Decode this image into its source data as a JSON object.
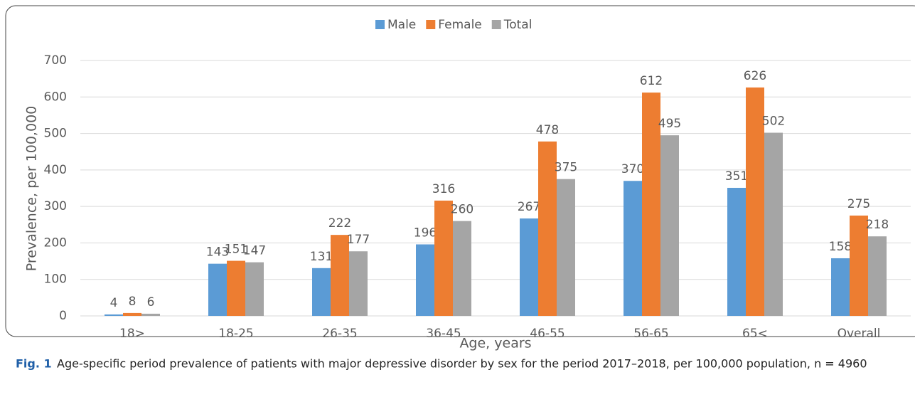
{
  "chart_data": {
    "type": "bar",
    "categories": [
      "18>",
      "18-25",
      "26-35",
      "36-45",
      "46-55",
      "56-65",
      "65<",
      "Overall"
    ],
    "series": [
      {
        "name": "Male",
        "color": "#5b9bd5",
        "values": [
          4,
          143,
          131,
          196,
          267,
          370,
          351,
          158
        ]
      },
      {
        "name": "Female",
        "color": "#ed7d31",
        "values": [
          8,
          151,
          222,
          316,
          478,
          612,
          626,
          275
        ]
      },
      {
        "name": "Total",
        "color": "#a5a5a5",
        "values": [
          6,
          147,
          177,
          260,
          375,
          495,
          502,
          218
        ]
      }
    ],
    "x_label": "Age, years",
    "y_label": "Prevalence, per 100,000",
    "ylim": [
      0,
      700
    ],
    "yticks": [
      0,
      100,
      200,
      300,
      400,
      500,
      600,
      700
    ],
    "grid": true,
    "legend": "top",
    "caption_label": "Fig. 1",
    "caption": "Age-specific period prevalence of patients with major depressive disorder by sex for the period 2017–2018, per 100,000 population, n = 4960"
  }
}
